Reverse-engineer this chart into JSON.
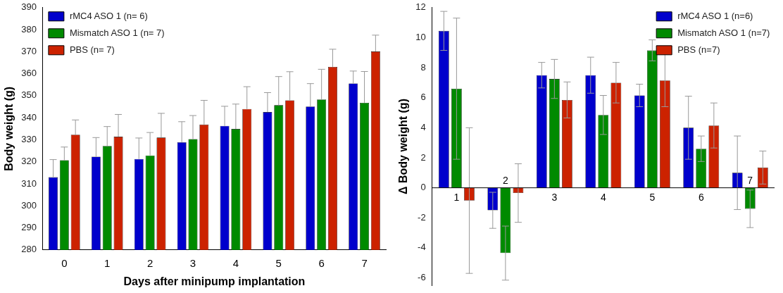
{
  "chart_data": [
    {
      "type": "bar",
      "xlabel": "Days after minipump implantation",
      "ylabel": "Body weight (g)",
      "categories": [
        "0",
        "1",
        "2",
        "3",
        "4",
        "5",
        "6",
        "7"
      ],
      "ylim": [
        280,
        390
      ],
      "yticks": [
        280,
        290,
        300,
        310,
        320,
        330,
        340,
        350,
        360,
        370,
        380,
        390
      ],
      "grid": false,
      "legend": "top left",
      "series": [
        {
          "name": "rMC4 ASO 1 (n= 6)",
          "color": "#0000cc",
          "values": [
            313,
            322.3,
            321.3,
            328.9,
            336.3,
            342.6,
            345.1,
            355.6
          ],
          "errors": [
            [
              313,
              321
            ],
            [
              322.3,
              331
            ],
            [
              321.3,
              330.8
            ],
            [
              328.9,
              338.2
            ],
            [
              336.3,
              345.2
            ],
            [
              342.6,
              351.4
            ],
            [
              345.1,
              355.5
            ],
            [
              355.6,
              361.2
            ]
          ]
        },
        {
          "name": "Mismatch ASO 1 (n= 7)",
          "color": "#008a00",
          "values": [
            320.7,
            327.2,
            322.9,
            330.3,
            334.9,
            345.7,
            348.3,
            346.8
          ],
          "errors": [
            [
              320.7,
              326.7
            ],
            [
              327.2,
              336
            ],
            [
              322.9,
              333.3
            ],
            [
              330.3,
              341
            ],
            [
              334.9,
              346.2
            ],
            [
              345.7,
              358.7
            ],
            [
              348.3,
              362
            ],
            [
              346.8,
              361
            ]
          ]
        },
        {
          "name": "PBS (n= 7)",
          "color": "#cc2200",
          "values": [
            332.3,
            331.4,
            331,
            336.9,
            344,
            347.9,
            363.1,
            370.1
          ],
          "errors": [
            [
              332.3,
              339
            ],
            [
              331.4,
              341.5
            ],
            [
              331,
              342
            ],
            [
              336.9,
              347.9
            ],
            [
              344,
              354.1
            ],
            [
              347.9,
              360.9
            ],
            [
              363.1,
              371.1
            ],
            [
              370.1,
              377.5
            ]
          ]
        }
      ]
    },
    {
      "type": "bar",
      "ylabel": "Δ Body weight (g)",
      "categories": [
        "1",
        "2",
        "3",
        "4",
        "5",
        "6",
        "7"
      ],
      "ylim": [
        -6.5,
        12
      ],
      "yticks": [
        -6,
        -4,
        -2,
        0,
        2,
        4,
        6,
        8,
        10,
        12
      ],
      "grid": false,
      "legend": "top right",
      "series": [
        {
          "name": "rMC4 ASO 1 (n=6)",
          "color": "#0000cc",
          "values": [
            10.45,
            -1.5,
            7.5,
            7.5,
            6.15,
            4.0,
            1.0
          ],
          "errors": [
            1.3,
            1.2,
            0.85,
            1.2,
            0.75,
            2.1,
            2.45
          ]
        },
        {
          "name": "Mismatch ASO 1 (n=7)",
          "color": "#008a00",
          "values": [
            6.6,
            -4.35,
            7.25,
            4.85,
            9.15,
            2.6,
            -1.4
          ],
          "errors": [
            4.7,
            1.8,
            1.3,
            1.3,
            0.7,
            0.85,
            1.25
          ]
        },
        {
          "name": "PBS (n=7)",
          "color": "#cc2200",
          "values": [
            -0.85,
            -0.35,
            5.85,
            7.0,
            7.15,
            4.15,
            1.35
          ],
          "errors": [
            4.85,
            1.95,
            1.2,
            1.35,
            1.75,
            1.5,
            1.1
          ]
        }
      ]
    }
  ]
}
